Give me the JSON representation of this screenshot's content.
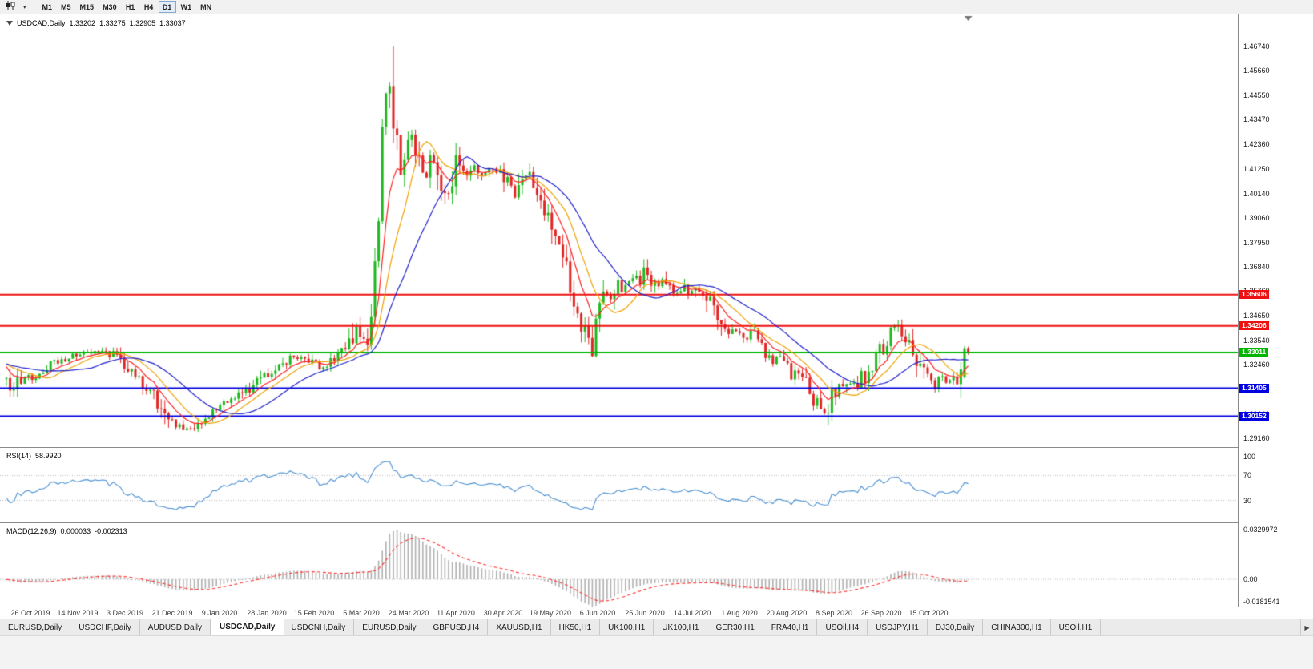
{
  "toolbar": {
    "chart_type_icon": "candlestick-chart-icon",
    "dropdown_icon": "chevron-down-icon",
    "timeframes": [
      {
        "label": "M1"
      },
      {
        "label": "M5"
      },
      {
        "label": "M15"
      },
      {
        "label": "M30"
      },
      {
        "label": "H1"
      },
      {
        "label": "H4"
      },
      {
        "label": "D1",
        "active": true
      },
      {
        "label": "W1"
      },
      {
        "label": "MN"
      }
    ]
  },
  "chart": {
    "title": {
      "symbol": "USDCAD,Daily",
      "open": "1.33202",
      "high": "1.33275",
      "low": "1.32905",
      "close": "1.33037"
    },
    "rsi_name": "RSI(14)",
    "rsi_value": "58.9920",
    "macd_name": "MACD(12,26,9)",
    "macd_value": "0.000033",
    "macd_signal_value": "-0.002313"
  },
  "chart_data": {
    "type": "candlestick",
    "symbol": "USDCAD",
    "timeframe": "Daily",
    "current_bar": {
      "open": 1.33202,
      "high": 1.33275,
      "low": 1.32905,
      "close": 1.33037
    },
    "bars_visible": 262,
    "price_axis_labels": [
      "1.46740",
      "1.45660",
      "1.44550",
      "1.43470",
      "1.42360",
      "1.41250",
      "1.40140",
      "1.39060",
      "1.37950",
      "1.36840",
      "1.35760",
      "1.34650",
      "1.33540",
      "1.32460",
      "1.31350",
      "1.30240",
      "1.29160"
    ],
    "date_labels": [
      "26 Oct 2019",
      "14 Nov 2019",
      "3 Dec 2019",
      "21 Dec 2019",
      "9 Jan 2020",
      "28 Jan 2020",
      "15 Feb 2020",
      "5 Mar 2020",
      "24 Mar 2020",
      "11 Apr 2020",
      "30 Apr 2020",
      "19 May 2020",
      "6 Jun 2020",
      "25 Jun 2020",
      "14 Jul 2020",
      "1 Aug 2020",
      "20 Aug 2020",
      "8 Sep 2020",
      "26 Sep 2020",
      "15 Oct 2020"
    ],
    "hlines": [
      {
        "price": 1.35606,
        "label": "1.35606",
        "color": "#ee1111"
      },
      {
        "price": 1.34206,
        "label": "1.34206",
        "color": "#ee1111"
      },
      {
        "price": 1.33011,
        "label": "1.33011",
        "color": "#00b400"
      },
      {
        "price": 1.31405,
        "label": "1.31405",
        "color": "#0000e0"
      },
      {
        "price": 1.30152,
        "label": "1.30152",
        "color": "#0000e0"
      }
    ],
    "moving_averages": [
      {
        "name": "fast-ma",
        "type": "ema",
        "period": 8,
        "color": "#ff2020"
      },
      {
        "name": "medium-ma",
        "type": "sma",
        "period": 13,
        "color": "#eda000"
      },
      {
        "name": "slow-ma",
        "type": "sma",
        "period": 24,
        "color": "#2222cc"
      }
    ],
    "colors": {
      "candle_up": "#1db81d",
      "candle_down": "#e02525"
    },
    "rsi": {
      "label": "RSI(14)",
      "value": 58.992,
      "period": 14,
      "levels": [
        100,
        70,
        30
      ],
      "axis_labels": [
        "100",
        "70",
        "30"
      ],
      "color": "#4a90d2"
    },
    "macd": {
      "label": "MACD(12,26,9)",
      "macd_value": 3.3e-05,
      "signal_value": -0.002313,
      "fast": 12,
      "slow": 26,
      "signal": 9,
      "axis_labels": [
        "0.0329972",
        "0.00",
        "-0.0181541"
      ],
      "axis_max": 0.0329972,
      "axis_min": -0.0181541,
      "histogram_color": "#b0b0b0",
      "signal_color": "#ff3030"
    },
    "price_path": [
      [
        0.0,
        1.3165
      ],
      [
        0.006,
        1.3095
      ],
      [
        0.014,
        1.3175
      ],
      [
        0.031,
        1.3195
      ],
      [
        0.051,
        1.3255
      ],
      [
        0.076,
        1.329
      ],
      [
        0.097,
        1.33
      ],
      [
        0.112,
        1.329
      ],
      [
        0.13,
        1.3215
      ],
      [
        0.151,
        1.3125
      ],
      [
        0.172,
        1.298
      ],
      [
        0.189,
        1.2958
      ],
      [
        0.205,
        1.301
      ],
      [
        0.226,
        1.3065
      ],
      [
        0.251,
        1.313
      ],
      [
        0.276,
        1.322
      ],
      [
        0.297,
        1.328
      ],
      [
        0.313,
        1.327
      ],
      [
        0.326,
        1.3225
      ],
      [
        0.342,
        1.329
      ],
      [
        0.356,
        1.332
      ],
      [
        0.363,
        1.343
      ],
      [
        0.369,
        1.3385
      ],
      [
        0.374,
        1.334
      ],
      [
        0.378,
        1.3425
      ],
      [
        0.382,
        1.365
      ],
      [
        0.385,
        1.375
      ],
      [
        0.387,
        1.392
      ],
      [
        0.39,
        1.425
      ],
      [
        0.392,
        1.45
      ],
      [
        0.395,
        1.445
      ],
      [
        0.397,
        1.455
      ],
      [
        0.4,
        1.44
      ],
      [
        0.404,
        1.43
      ],
      [
        0.407,
        1.42
      ],
      [
        0.41,
        1.412
      ],
      [
        0.415,
        1.42
      ],
      [
        0.42,
        1.428
      ],
      [
        0.425,
        1.422
      ],
      [
        0.431,
        1.415
      ],
      [
        0.437,
        1.41
      ],
      [
        0.443,
        1.418
      ],
      [
        0.449,
        1.411
      ],
      [
        0.454,
        1.403
      ],
      [
        0.459,
        1.398
      ],
      [
        0.464,
        1.406
      ],
      [
        0.469,
        1.417
      ],
      [
        0.474,
        1.409
      ],
      [
        0.481,
        1.412
      ],
      [
        0.488,
        1.415
      ],
      [
        0.494,
        1.41
      ],
      [
        0.501,
        1.413
      ],
      [
        0.508,
        1.409
      ],
      [
        0.514,
        1.412
      ],
      [
        0.521,
        1.406
      ],
      [
        0.527,
        1.4
      ],
      [
        0.534,
        1.406
      ],
      [
        0.541,
        1.411
      ],
      [
        0.547,
        1.405
      ],
      [
        0.554,
        1.398
      ],
      [
        0.561,
        1.392
      ],
      [
        0.567,
        1.385
      ],
      [
        0.574,
        1.378
      ],
      [
        0.581,
        1.37
      ],
      [
        0.586,
        1.36
      ],
      [
        0.592,
        1.35
      ],
      [
        0.598,
        1.342
      ],
      [
        0.603,
        1.337
      ],
      [
        0.608,
        1.33
      ],
      [
        0.613,
        1.342
      ],
      [
        0.618,
        1.352
      ],
      [
        0.623,
        1.357
      ],
      [
        0.629,
        1.354
      ],
      [
        0.635,
        1.362
      ],
      [
        0.64,
        1.356
      ],
      [
        0.646,
        1.361
      ],
      [
        0.652,
        1.365
      ],
      [
        0.658,
        1.362
      ],
      [
        0.664,
        1.369
      ],
      [
        0.669,
        1.365
      ],
      [
        0.676,
        1.36
      ],
      [
        0.683,
        1.363
      ],
      [
        0.689,
        1.358
      ],
      [
        0.696,
        1.356
      ],
      [
        0.703,
        1.359
      ],
      [
        0.709,
        1.3545
      ],
      [
        0.716,
        1.357
      ],
      [
        0.723,
        1.359
      ],
      [
        0.729,
        1.354
      ],
      [
        0.736,
        1.349
      ],
      [
        0.742,
        1.344
      ],
      [
        0.749,
        1.339
      ],
      [
        0.756,
        1.343
      ],
      [
        0.762,
        1.34
      ],
      [
        0.769,
        1.336
      ],
      [
        0.776,
        1.34
      ],
      [
        0.782,
        1.335
      ],
      [
        0.789,
        1.33
      ],
      [
        0.796,
        1.326
      ],
      [
        0.802,
        1.329
      ],
      [
        0.809,
        1.324
      ],
      [
        0.816,
        1.319
      ],
      [
        0.822,
        1.323
      ],
      [
        0.829,
        1.317
      ],
      [
        0.835,
        1.312
      ],
      [
        0.842,
        1.307
      ],
      [
        0.849,
        1.303
      ],
      [
        0.855,
        1.307
      ],
      [
        0.86,
        1.312
      ],
      [
        0.866,
        1.316
      ],
      [
        0.872,
        1.313
      ],
      [
        0.878,
        1.318
      ],
      [
        0.884,
        1.315
      ],
      [
        0.889,
        1.32
      ],
      [
        0.895,
        1.317
      ],
      [
        0.901,
        1.323
      ],
      [
        0.907,
        1.329
      ],
      [
        0.913,
        1.334
      ],
      [
        0.919,
        1.339
      ],
      [
        0.924,
        1.3415
      ],
      [
        0.93,
        1.339
      ],
      [
        0.936,
        1.336
      ],
      [
        0.942,
        1.331
      ],
      [
        0.948,
        1.326
      ],
      [
        0.953,
        1.321
      ],
      [
        0.959,
        1.317
      ],
      [
        0.965,
        1.315
      ],
      [
        0.971,
        1.3185
      ],
      [
        0.977,
        1.3155
      ],
      [
        0.982,
        1.319
      ],
      [
        0.988,
        1.317
      ],
      [
        0.993,
        1.32
      ],
      [
        1.0,
        1.3304
      ]
    ],
    "last_bars": [
      {
        "o": 1.319,
        "h": 1.333,
        "l": 1.3185,
        "c": 1.332
      },
      {
        "o": 1.33202,
        "h": 1.33275,
        "l": 1.32905,
        "c": 1.33037
      }
    ],
    "extremes": {
      "high": 1.4674,
      "low": 1.2905
    }
  },
  "tabs": {
    "items": [
      {
        "label": "EURUSD,Daily"
      },
      {
        "label": "USDCHF,Daily"
      },
      {
        "label": "AUDUSD,Daily"
      },
      {
        "label": "USDCAD,Daily",
        "active": true
      },
      {
        "label": "USDCNH,Daily"
      },
      {
        "label": "EURUSD,Daily"
      },
      {
        "label": "GBPUSD,H4"
      },
      {
        "label": "XAUUSD,H1"
      },
      {
        "label": "HK50,H1"
      },
      {
        "label": "UK100,H1"
      },
      {
        "label": "UK100,H1"
      },
      {
        "label": "GER30,H1"
      },
      {
        "label": "FRA40,H1"
      },
      {
        "label": "USOil,H4"
      },
      {
        "label": "USDJPY,H1"
      },
      {
        "label": "DJ30,Daily"
      },
      {
        "label": "CHINA300,H1"
      },
      {
        "label": "USOil,H1"
      }
    ],
    "scroll_right_icon": "▶"
  }
}
